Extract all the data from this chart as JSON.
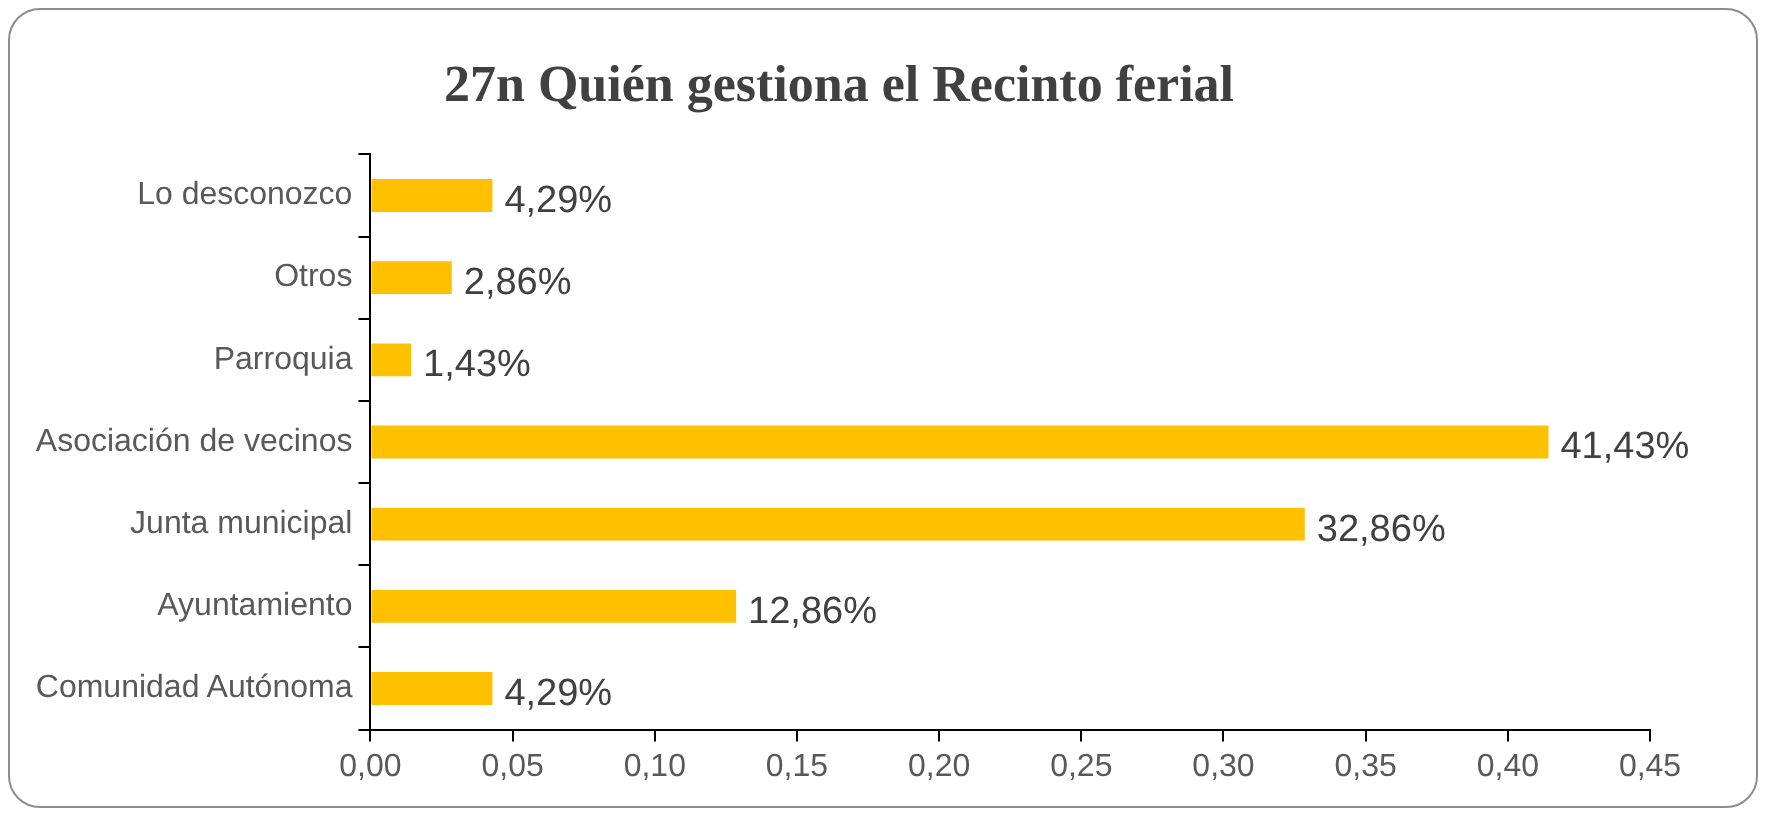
{
  "chart_data": {
    "type": "bar",
    "orientation": "horizontal",
    "title": "27n Quién gestiona el Recinto ferial",
    "categories": [
      "Lo desconozco",
      "Otros",
      "Parroquia",
      "Asociación de vecinos",
      "Junta municipal",
      "Ayuntamiento",
      "Comunidad Autónoma"
    ],
    "values": [
      0.0429,
      0.0286,
      0.0143,
      0.4143,
      0.3286,
      0.1286,
      0.0429
    ],
    "value_labels": [
      "4,29%",
      "2,86%",
      "1,43%",
      "41,43%",
      "32,86%",
      "12,86%",
      "4,29%"
    ],
    "color": "#ffc000",
    "xlim": [
      0,
      0.45
    ],
    "xticks": [
      {
        "value": 0,
        "label": "0,00"
      },
      {
        "value": 0.05,
        "label": "0,05"
      },
      {
        "value": 0.1,
        "label": "0,10"
      },
      {
        "value": 0.15,
        "label": "0,15"
      },
      {
        "value": 0.2,
        "label": "0,20"
      },
      {
        "value": 0.25,
        "label": "0,25"
      },
      {
        "value": 0.3,
        "label": "0,30"
      },
      {
        "value": 0.35,
        "label": "0,35"
      },
      {
        "value": 0.4,
        "label": "0,40"
      },
      {
        "value": 0.45,
        "label": "0,45"
      }
    ],
    "grid": false,
    "legend": false
  }
}
